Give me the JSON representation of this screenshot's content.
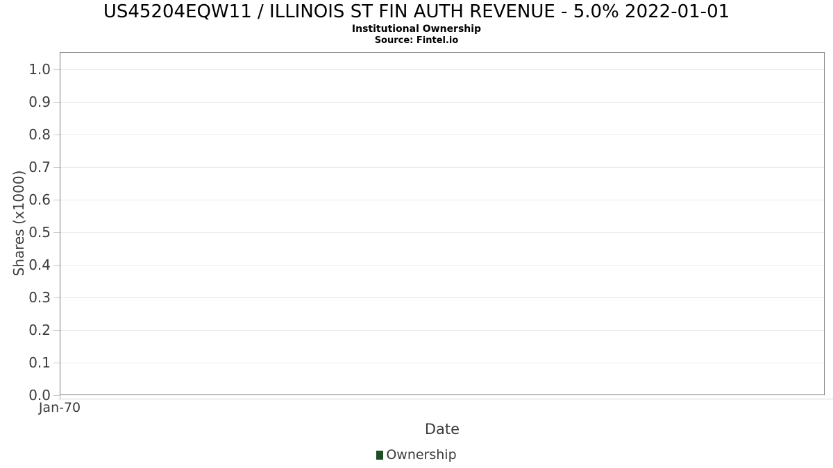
{
  "chart_data": {
    "type": "line",
    "title": "US45204EQW11 / ILLINOIS ST FIN AUTH REVENUE - 5.0% 2022-01-01",
    "subtitle": "Institutional Ownership",
    "source": "Source: Fintel.io",
    "xlabel": "Date",
    "ylabel": "Shares (x1000)",
    "x_ticks": [
      "Jan-70"
    ],
    "y_ticks": [
      "0.0",
      "0.1",
      "0.2",
      "0.3",
      "0.4",
      "0.5",
      "0.6",
      "0.7",
      "0.8",
      "0.9",
      "1.0"
    ],
    "ylim": [
      0.0,
      1.05
    ],
    "grid": "horizontal",
    "legend_position": "bottom-center",
    "series": [
      {
        "name": "Ownership",
        "color": "#1e4d28",
        "x": [],
        "y": []
      }
    ]
  },
  "colors": {
    "legend_swatch": "#1e4d28",
    "plot_border": "#7a7a7a",
    "gridline": "#e9e9e9",
    "tick_mark": "#c9c9c9",
    "axis_text": "#3b3b3b",
    "title_text": "#000000"
  }
}
